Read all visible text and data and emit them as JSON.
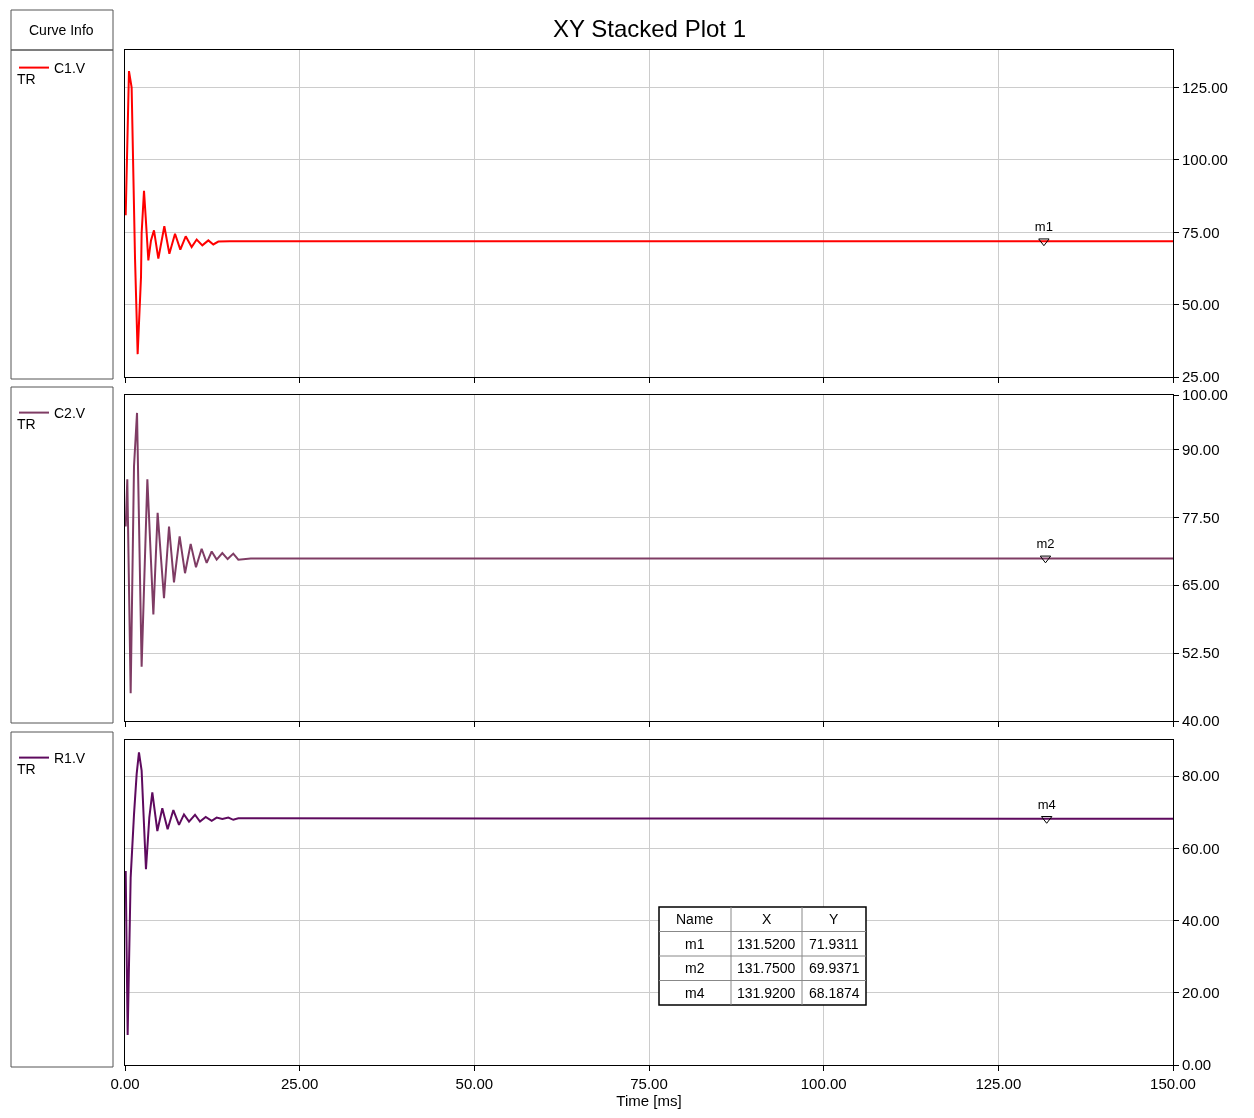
{
  "chart_data": [
    {
      "type": "line",
      "title": "XY Stacked Plot 1",
      "legend_title": "Curve Info",
      "grid": true,
      "legend": "left",
      "tick_labels": "y",
      "marker": "none",
      "line_style": "solid",
      "xlim": [
        0,
        150
      ],
      "xticks": [
        {
          "value": 0,
          "label": null
        },
        {
          "value": 25,
          "label": null
        },
        {
          "value": 50,
          "label": null
        },
        {
          "value": 75,
          "label": null
        },
        {
          "value": 100,
          "label": null
        },
        {
          "value": 125,
          "label": null
        },
        {
          "value": 150,
          "label": null
        }
      ],
      "ylim": [
        25,
        138
      ],
      "yticks": [
        {
          "value": 25,
          "label": "25.00"
        },
        {
          "value": 50,
          "label": "50.00"
        },
        {
          "value": 75,
          "label": "75.00"
        },
        {
          "value": 100,
          "label": "100.00"
        },
        {
          "value": 125,
          "label": "125.00"
        }
      ],
      "series": [
        {
          "name": "C1.V",
          "color": "#ff0000",
          "x": [
            0.1,
            0.57,
            0.95,
            1.43,
            1.81,
            2.29,
            2.38,
            2.72,
            2.96,
            3.34,
            3.72,
            4.15,
            4.77,
            5.63,
            6.35,
            7.16,
            7.92,
            8.69,
            9.54,
            10.26,
            11.07,
            11.93,
            12.64,
            13.36,
            15,
            150
          ],
          "values": [
            80.9,
            130.7,
            125,
            66.4,
            32.9,
            59.5,
            74.7,
            89.3,
            80.3,
            65.3,
            72.2,
            75.7,
            65.9,
            77.1,
            67.6,
            74.5,
            69.0,
            73.6,
            69.9,
            72.5,
            70.5,
            72.2,
            70.8,
            71.8,
            71.9,
            71.9
          ]
        }
      ],
      "annotations": [
        "TR",
        {
          "text": "m1",
          "x": 131.52,
          "y": 71.9311
        }
      ]
    },
    {
      "type": "line",
      "grid": true,
      "legend": "left",
      "tick_labels": "y",
      "marker": "none",
      "line_style": "solid",
      "xlim": [
        0,
        150
      ],
      "xticks": [
        {
          "value": 0,
          "label": null
        },
        {
          "value": 25,
          "label": null
        },
        {
          "value": 50,
          "label": null
        },
        {
          "value": 75,
          "label": null
        },
        {
          "value": 100,
          "label": null
        },
        {
          "value": 125,
          "label": null
        },
        {
          "value": 150,
          "label": null
        }
      ],
      "ylim": [
        40,
        100
      ],
      "yticks": [
        {
          "value": 40,
          "label": "40.00"
        },
        {
          "value": 52.5,
          "label": "52.50"
        },
        {
          "value": 65,
          "label": "65.00"
        },
        {
          "value": 77.5,
          "label": "77.50"
        },
        {
          "value": 90,
          "label": "90.00"
        },
        {
          "value": 100,
          "label": "100.00"
        }
      ],
      "series": [
        {
          "name": "C2.V",
          "color": "#7f3c64",
          "x": [
            0.1,
            0.33,
            0.81,
            1.29,
            1.72,
            2.38,
            3.2,
            4.06,
            4.67,
            5.58,
            6.3,
            7.01,
            7.82,
            8.59,
            9.4,
            10.16,
            10.97,
            11.69,
            12.41,
            13.12,
            13.93,
            14.69,
            15.5,
            16.22,
            18,
            150
          ],
          "values": [
            75.8,
            84.5,
            45.1,
            86.9,
            96.7,
            50.0,
            84.5,
            59.6,
            78.3,
            62.6,
            75.8,
            65.5,
            74.0,
            67.2,
            72.6,
            68.3,
            71.7,
            69.1,
            71.2,
            69.7,
            70.9,
            69.8,
            70.8,
            69.7,
            69.9,
            69.9
          ]
        }
      ],
      "annotations": [
        "TR",
        {
          "text": "m2",
          "x": 131.75,
          "y": 69.9371
        }
      ]
    },
    {
      "type": "line",
      "xlabel": "Time [ms]",
      "grid": true,
      "legend": "left",
      "marker": "none",
      "line_style": "solid",
      "xlim": [
        0,
        150
      ],
      "xticks": [
        {
          "value": 0,
          "label": "0.00"
        },
        {
          "value": 25,
          "label": "25.00"
        },
        {
          "value": 50,
          "label": "50.00"
        },
        {
          "value": 75,
          "label": "75.00"
        },
        {
          "value": 100,
          "label": "100.00"
        },
        {
          "value": 125,
          "label": "125.00"
        },
        {
          "value": 150,
          "label": "150.00"
        }
      ],
      "ylim": [
        0,
        90
      ],
      "yticks": [
        {
          "value": 0,
          "label": "0.00"
        },
        {
          "value": 20,
          "label": "20.00"
        },
        {
          "value": 40,
          "label": "40.00"
        },
        {
          "value": 60,
          "label": "60.00"
        },
        {
          "value": 80,
          "label": "80.00"
        }
      ],
      "series": [
        {
          "name": "R1.V",
          "color": "#5e0a5e",
          "x": [
            0.1,
            0.38,
            0.81,
            1.29,
            1.67,
            2.0,
            2.38,
            3.0,
            3.48,
            3.91,
            4.63,
            5.34,
            6.1,
            6.92,
            7.73,
            8.44,
            9.16,
            10.02,
            10.73,
            11.55,
            12.41,
            13.12,
            13.93,
            14.79,
            15.5,
            16.22,
            150
          ],
          "values": [
            53.7,
            8.3,
            51.9,
            69.4,
            80.6,
            86.6,
            81.5,
            54.2,
            68.5,
            75.5,
            64.8,
            71.1,
            65.3,
            70.6,
            66.5,
            69.4,
            67.4,
            69.3,
            67.4,
            68.7,
            67.6,
            68.5,
            68.1,
            68.5,
            67.9,
            68.3,
            68.2
          ]
        }
      ],
      "annotations": [
        "TR",
        {
          "text": "m4",
          "x": 131.92,
          "y": 68.1874
        },
        "Name",
        "X",
        "Y",
        "m1",
        "131.5200",
        "71.9311",
        "m2",
        "131.7500",
        "69.9371",
        "m4",
        "131.9200",
        "68.1874"
      ]
    }
  ]
}
